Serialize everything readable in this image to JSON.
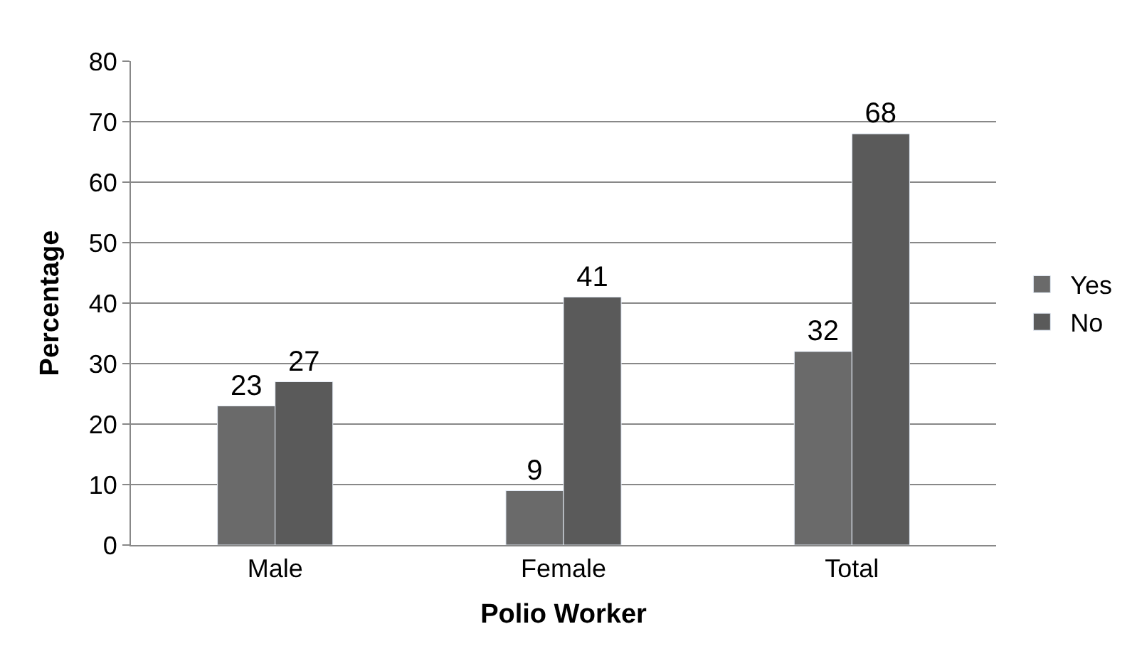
{
  "chart_data": {
    "type": "bar",
    "xlabel": "Polio Worker",
    "ylabel": "Percentage",
    "categories": [
      "Male",
      "Female",
      "Total"
    ],
    "series": [
      {
        "name": "Yes",
        "color": "#6a6a6a",
        "values": [
          23,
          9,
          32
        ]
      },
      {
        "name": "No",
        "color": "#5a5a5a",
        "values": [
          27,
          41,
          68
        ]
      }
    ],
    "ylim": [
      0,
      80
    ],
    "yticks": [
      0,
      10,
      20,
      30,
      40,
      50,
      60,
      70,
      80
    ],
    "grid": "y",
    "legend": "right",
    "data_labels": true
  }
}
